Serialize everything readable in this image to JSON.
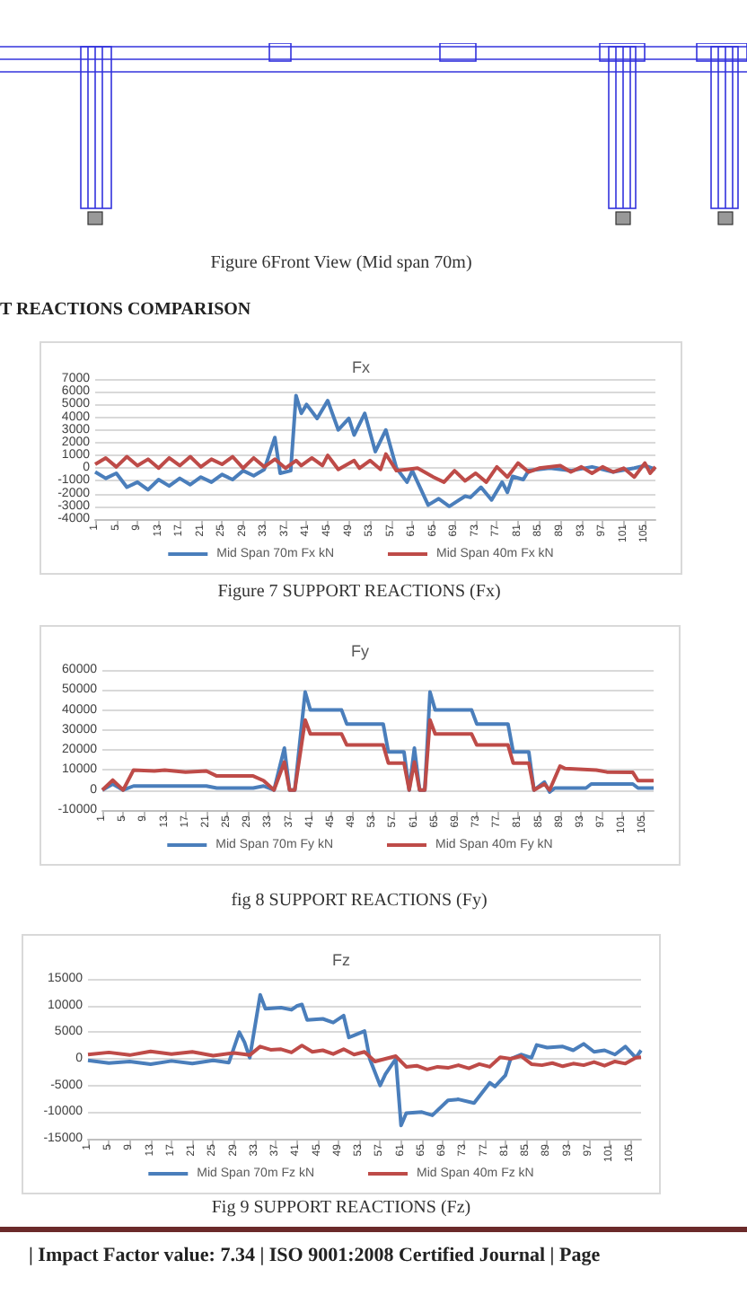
{
  "chart_data": [
    {
      "type": "line",
      "title": "Fx",
      "annotations": [
        "Figure 6Front View (Mid span 70m)",
        "T REACTIONS COMPARISON",
        "Figure 7 SUPPORT REACTIONS (Fx)"
      ],
      "xlim": [
        1,
        107
      ],
      "xticks": [
        1,
        5,
        9,
        13,
        17,
        21,
        25,
        29,
        33,
        37,
        41,
        45,
        49,
        53,
        57,
        61,
        65,
        69,
        73,
        77,
        81,
        85,
        89,
        93,
        97,
        101,
        105
      ],
      "ylim": [
        -4000,
        7000
      ],
      "yticks": [
        -4000,
        -3000,
        -2000,
        -1000,
        0,
        1000,
        2000,
        3000,
        4000,
        5000,
        6000,
        7000
      ],
      "grid": "y",
      "legend": "bottom",
      "marker": "none",
      "series": [
        {
          "name": "Mid Span 70m Fx kN",
          "color": "#4a7ebb",
          "x": [
            1,
            3,
            5,
            7,
            9,
            11,
            13,
            15,
            17,
            19,
            21,
            23,
            25,
            27,
            29,
            31,
            33,
            35,
            36,
            38,
            39,
            40,
            41,
            43,
            45,
            47,
            49,
            50,
            52,
            54,
            56,
            58,
            60,
            61,
            64,
            66,
            68,
            71,
            72,
            74,
            76,
            78,
            79,
            80,
            82,
            83,
            87,
            91,
            95,
            99,
            103,
            105,
            107
          ],
          "values": [
            -300,
            -800,
            -400,
            -1500,
            -1100,
            -1700,
            -900,
            -1400,
            -800,
            -1300,
            -700,
            -1100,
            -500,
            -900,
            -200,
            -600,
            -100,
            2400,
            -400,
            -200,
            5700,
            4300,
            5000,
            3900,
            5300,
            3000,
            3900,
            2600,
            4300,
            1300,
            3000,
            0,
            -1100,
            -200,
            -2900,
            -2400,
            -3000,
            -2200,
            -2300,
            -1500,
            -2500,
            -1100,
            -1900,
            -650,
            -900,
            -200,
            0,
            -200,
            100,
            -300,
            0,
            200,
            -100
          ]
        },
        {
          "name": "Mid Span 40m Fx kN",
          "color": "#be4b48",
          "x": [
            1,
            3,
            5,
            7,
            9,
            11,
            13,
            15,
            17,
            19,
            21,
            23,
            25,
            27,
            29,
            31,
            33,
            35,
            37,
            39,
            40,
            42,
            44,
            45,
            47,
            50,
            51,
            53,
            55,
            56,
            58,
            60,
            62,
            65,
            67,
            69,
            71,
            73,
            75,
            77,
            79,
            81,
            83,
            85,
            89,
            91,
            93,
            95,
            97,
            99,
            101,
            103,
            105,
            106,
            107
          ],
          "values": [
            300,
            800,
            100,
            900,
            200,
            700,
            0,
            800,
            200,
            900,
            100,
            700,
            300,
            900,
            0,
            800,
            100,
            700,
            0,
            600,
            200,
            800,
            200,
            1000,
            -100,
            600,
            0,
            600,
            -100,
            1100,
            -200,
            -100,
            0,
            -700,
            -1100,
            -200,
            -1000,
            -400,
            -1100,
            100,
            -700,
            400,
            -300,
            0,
            200,
            -300,
            100,
            -400,
            100,
            -300,
            0,
            -700,
            400,
            -400,
            100
          ]
        }
      ]
    },
    {
      "type": "line",
      "title": "Fy",
      "annotations": [
        "fig 8 SUPPORT REACTIONS (Fy)"
      ],
      "xlim": [
        1,
        107
      ],
      "xticks": [
        1,
        5,
        9,
        13,
        17,
        21,
        25,
        29,
        33,
        37,
        41,
        45,
        49,
        53,
        57,
        61,
        65,
        69,
        73,
        77,
        81,
        85,
        89,
        93,
        97,
        101,
        105
      ],
      "ylim": [
        -10000,
        60000
      ],
      "yticks": [
        -10000,
        0,
        10000,
        20000,
        30000,
        40000,
        50000,
        60000
      ],
      "grid": "y",
      "legend": "bottom",
      "marker": "none",
      "series": [
        {
          "name": "Mid Span 70m Fy kN",
          "color": "#4a7ebb",
          "x": [
            1,
            3,
            5,
            7,
            21,
            23,
            30,
            32,
            34,
            36,
            37,
            38,
            40,
            41,
            47,
            48,
            55,
            56,
            59,
            60,
            61,
            62,
            63,
            64,
            65,
            72,
            73,
            79,
            80,
            83,
            84,
            86,
            87,
            88,
            94,
            95,
            103,
            104,
            107
          ],
          "values": [
            0,
            3000,
            0,
            2000,
            2000,
            1000,
            1000,
            2000,
            0,
            21000,
            0,
            0,
            49000,
            40000,
            40000,
            33000,
            33000,
            19000,
            19000,
            0,
            21000,
            0,
            0,
            49000,
            40000,
            40000,
            33000,
            33000,
            19000,
            19000,
            0,
            4000,
            -1000,
            1000,
            1000,
            3000,
            3000,
            1000,
            1000
          ]
        },
        {
          "name": "Mid Span 40m Fy kN",
          "color": "#be4b48",
          "x": [
            1,
            3,
            5,
            7,
            11,
            13,
            17,
            21,
            23,
            30,
            32,
            34,
            36,
            37,
            38,
            40,
            41,
            47,
            48,
            55,
            56,
            59,
            60,
            61,
            62,
            63,
            64,
            65,
            72,
            73,
            79,
            80,
            83,
            84,
            86,
            87,
            89,
            90,
            96,
            98,
            103,
            104,
            107
          ],
          "values": [
            0,
            5000,
            0,
            10000,
            9500,
            10000,
            9000,
            9500,
            7000,
            7000,
            4700,
            0,
            14000,
            0,
            0,
            35000,
            28000,
            28000,
            22500,
            22500,
            13500,
            13500,
            0,
            14000,
            0,
            0,
            35000,
            28000,
            28000,
            22500,
            22500,
            13500,
            13500,
            0,
            3000,
            0,
            12000,
            10700,
            10000,
            9000,
            8800,
            4700,
            4700
          ]
        }
      ]
    },
    {
      "type": "line",
      "title": "Fz",
      "annotations": [
        "Fig 9 SUPPORT REACTIONS (Fz)",
        "|   Impact Factor value: 7.34   |   ISO 9001:2008 Certified Journal   |   Page"
      ],
      "xlim": [
        1,
        107
      ],
      "xticks": [
        1,
        5,
        9,
        13,
        17,
        21,
        25,
        29,
        33,
        37,
        41,
        45,
        49,
        53,
        57,
        61,
        65,
        69,
        73,
        77,
        81,
        85,
        89,
        93,
        97,
        101,
        105
      ],
      "ylim": [
        -15000,
        15000
      ],
      "yticks": [
        -15000,
        -10000,
        -5000,
        0,
        5000,
        10000,
        15000
      ],
      "grid": "y",
      "legend": "bottom",
      "marker": "none",
      "series": [
        {
          "name": "Mid Span 70m Fz kN",
          "color": "#4a7ebb",
          "x": [
            1,
            5,
            9,
            13,
            17,
            21,
            25,
            28,
            30,
            31,
            32,
            34,
            35,
            38,
            40,
            41,
            42,
            43,
            46,
            48,
            50,
            51,
            52,
            54,
            55,
            57,
            58,
            60,
            61,
            62,
            65,
            67,
            70,
            72,
            75,
            78,
            79,
            81,
            82,
            84,
            86,
            87,
            89,
            92,
            94,
            96,
            98,
            100,
            102,
            104,
            106,
            107
          ],
          "values": [
            -300,
            -800,
            -500,
            -1000,
            -400,
            -900,
            -300,
            -700,
            5000,
            3100,
            200,
            12000,
            9400,
            9600,
            9200,
            9900,
            10200,
            7300,
            7500,
            6800,
            8100,
            4000,
            4400,
            5200,
            0,
            -5000,
            -2900,
            0,
            -12500,
            -10200,
            -10000,
            -10600,
            -7800,
            -7600,
            -8300,
            -4500,
            -5200,
            -3100,
            0,
            800,
            200,
            2600,
            2100,
            2300,
            1600,
            2800,
            1300,
            1600,
            800,
            2300,
            200,
            1600
          ]
        },
        {
          "name": "Mid Span 40m Fz kN",
          "color": "#be4b48",
          "x": [
            1,
            5,
            9,
            13,
            17,
            21,
            25,
            29,
            32,
            34,
            36,
            38,
            40,
            42,
            44,
            46,
            48,
            50,
            52,
            54,
            56,
            58,
            60,
            62,
            64,
            66,
            68,
            70,
            72,
            74,
            76,
            78,
            80,
            82,
            84,
            86,
            88,
            90,
            92,
            94,
            96,
            98,
            100,
            102,
            104,
            106,
            107
          ],
          "values": [
            800,
            1200,
            700,
            1400,
            900,
            1300,
            600,
            1100,
            700,
            2300,
            1700,
            1800,
            1200,
            2500,
            1300,
            1600,
            900,
            1800,
            800,
            1300,
            -500,
            0,
            500,
            -1500,
            -1300,
            -2000,
            -1500,
            -1700,
            -1200,
            -1800,
            -1000,
            -1500,
            300,
            0,
            500,
            -1000,
            -1200,
            -800,
            -1400,
            -900,
            -1200,
            -600,
            -1300,
            -500,
            -900,
            200,
            300
          ]
        }
      ]
    }
  ]
}
